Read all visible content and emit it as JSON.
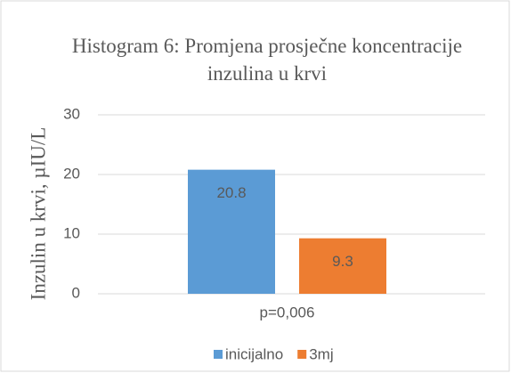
{
  "chart_data": {
    "type": "bar",
    "title": "Histogram 6: Promjena prosječne koncentracije inzulina u krvi",
    "ylabel": "Inzulin u krvi, µIU/L",
    "categories": [
      "p=0,006"
    ],
    "series": [
      {
        "name": "inicijalno",
        "color": "#5b9bd5",
        "values": [
          20.8
        ]
      },
      {
        "name": "3mj",
        "color": "#ed7d31",
        "values": [
          9.3
        ]
      }
    ],
    "ylim": [
      0,
      30
    ],
    "yticks": [
      0,
      10,
      20,
      30
    ],
    "grid": true,
    "legend": "bottom",
    "data_labels": true
  }
}
